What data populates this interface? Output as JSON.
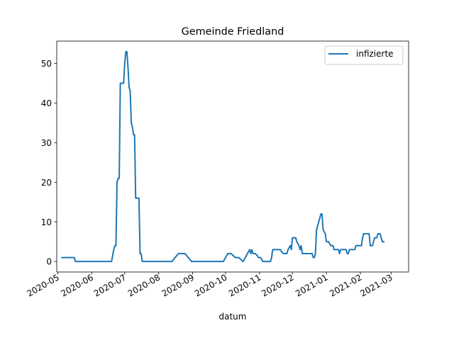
{
  "chart_data": {
    "type": "line",
    "title": "Gemeinde Friedland",
    "xlabel": "datum",
    "ylabel": "",
    "xlim": [
      "2020-04-30",
      "2021-03-17"
    ],
    "ylim": [
      -2.65,
      55.65
    ],
    "x_ticks": [
      "2020-05",
      "2020-06",
      "2020-07",
      "2020-08",
      "2020-09",
      "2020-10",
      "2020-11",
      "2020-12",
      "2021-01",
      "2021-02",
      "2021-03"
    ],
    "y_ticks": [
      0,
      10,
      20,
      30,
      40,
      50
    ],
    "legend": {
      "position": "top-right"
    },
    "grid": false,
    "colors": {
      "series": "#1f77b4"
    },
    "series": [
      {
        "name": "infizierte",
        "points": [
          [
            "2020-05-04",
            1
          ],
          [
            "2020-05-07",
            1
          ],
          [
            "2020-05-10",
            1
          ],
          [
            "2020-05-13",
            1
          ],
          [
            "2020-05-16",
            1
          ],
          [
            "2020-05-17",
            0
          ],
          [
            "2020-05-20",
            0
          ],
          [
            "2020-05-25",
            0
          ],
          [
            "2020-05-31",
            0
          ],
          [
            "2020-06-05",
            0
          ],
          [
            "2020-06-10",
            0
          ],
          [
            "2020-06-15",
            0
          ],
          [
            "2020-06-19",
            0
          ],
          [
            "2020-06-21",
            3
          ],
          [
            "2020-06-22",
            4
          ],
          [
            "2020-06-23",
            4
          ],
          [
            "2020-06-24",
            20
          ],
          [
            "2020-06-25",
            21
          ],
          [
            "2020-06-26",
            21
          ],
          [
            "2020-06-27",
            45
          ],
          [
            "2020-06-28",
            45
          ],
          [
            "2020-06-29",
            45
          ],
          [
            "2020-06-30",
            45
          ],
          [
            "2020-07-01",
            50
          ],
          [
            "2020-07-02",
            53
          ],
          [
            "2020-07-03",
            53
          ],
          [
            "2020-07-04",
            49
          ],
          [
            "2020-07-05",
            44
          ],
          [
            "2020-07-06",
            43
          ],
          [
            "2020-07-07",
            35
          ],
          [
            "2020-07-08",
            34
          ],
          [
            "2020-07-09",
            32
          ],
          [
            "2020-07-10",
            32
          ],
          [
            "2020-07-11",
            16
          ],
          [
            "2020-07-12",
            16
          ],
          [
            "2020-07-13",
            16
          ],
          [
            "2020-07-14",
            16
          ],
          [
            "2020-07-15",
            2
          ],
          [
            "2020-07-16",
            2
          ],
          [
            "2020-07-17",
            0
          ],
          [
            "2020-07-22",
            0
          ],
          [
            "2020-07-28",
            0
          ],
          [
            "2020-08-03",
            0
          ],
          [
            "2020-08-09",
            0
          ],
          [
            "2020-08-13",
            0
          ],
          [
            "2020-08-16",
            1
          ],
          [
            "2020-08-19",
            2
          ],
          [
            "2020-08-22",
            2
          ],
          [
            "2020-08-25",
            2
          ],
          [
            "2020-08-28",
            1
          ],
          [
            "2020-08-31",
            0
          ],
          [
            "2020-09-05",
            0
          ],
          [
            "2020-09-10",
            0
          ],
          [
            "2020-09-15",
            0
          ],
          [
            "2020-09-20",
            0
          ],
          [
            "2020-09-25",
            0
          ],
          [
            "2020-09-29",
            0
          ],
          [
            "2020-10-01",
            1
          ],
          [
            "2020-10-03",
            2
          ],
          [
            "2020-10-06",
            2
          ],
          [
            "2020-10-08",
            1.5
          ],
          [
            "2020-10-10",
            1
          ],
          [
            "2020-10-13",
            1
          ],
          [
            "2020-10-15",
            0.5
          ],
          [
            "2020-10-17",
            0
          ],
          [
            "2020-10-19",
            1
          ],
          [
            "2020-10-21",
            2
          ],
          [
            "2020-10-22",
            2.5
          ],
          [
            "2020-10-23",
            3
          ],
          [
            "2020-10-24",
            2
          ],
          [
            "2020-10-25",
            3
          ],
          [
            "2020-10-26",
            2
          ],
          [
            "2020-10-28",
            2
          ],
          [
            "2020-10-30",
            1.5
          ],
          [
            "2020-10-31",
            1
          ],
          [
            "2020-11-02",
            1
          ],
          [
            "2020-11-04",
            0
          ],
          [
            "2020-11-08",
            0
          ],
          [
            "2020-11-11",
            0
          ],
          [
            "2020-11-12",
            1
          ],
          [
            "2020-11-13",
            3
          ],
          [
            "2020-11-15",
            3
          ],
          [
            "2020-11-18",
            3
          ],
          [
            "2020-11-20",
            3
          ],
          [
            "2020-11-21",
            2.5
          ],
          [
            "2020-11-23",
            2
          ],
          [
            "2020-11-26",
            2
          ],
          [
            "2020-11-27",
            3
          ],
          [
            "2020-11-29",
            4
          ],
          [
            "2020-11-30",
            3
          ],
          [
            "2020-12-01",
            6
          ],
          [
            "2020-12-03",
            6
          ],
          [
            "2020-12-04",
            6
          ],
          [
            "2020-12-05",
            5
          ],
          [
            "2020-12-07",
            4
          ],
          [
            "2020-12-08",
            3
          ],
          [
            "2020-12-09",
            4
          ],
          [
            "2020-12-10",
            2
          ],
          [
            "2020-12-13",
            2
          ],
          [
            "2020-12-16",
            2
          ],
          [
            "2020-12-19",
            2
          ],
          [
            "2020-12-20",
            1
          ],
          [
            "2020-12-21",
            1
          ],
          [
            "2020-12-22",
            2
          ],
          [
            "2020-12-23",
            8
          ],
          [
            "2020-12-25",
            10
          ],
          [
            "2020-12-27",
            12
          ],
          [
            "2020-12-28",
            12
          ],
          [
            "2020-12-29",
            8
          ],
          [
            "2020-12-31",
            7
          ],
          [
            "2021-01-01",
            5
          ],
          [
            "2021-01-03",
            5
          ],
          [
            "2021-01-05",
            4
          ],
          [
            "2021-01-07",
            4
          ],
          [
            "2021-01-08",
            3
          ],
          [
            "2021-01-10",
            3
          ],
          [
            "2021-01-12",
            3
          ],
          [
            "2021-01-13",
            2
          ],
          [
            "2021-01-14",
            3
          ],
          [
            "2021-01-17",
            3
          ],
          [
            "2021-01-19",
            3
          ],
          [
            "2021-01-20",
            2
          ],
          [
            "2021-01-21",
            2
          ],
          [
            "2021-01-22",
            3
          ],
          [
            "2021-01-25",
            3
          ],
          [
            "2021-01-27",
            3
          ],
          [
            "2021-01-28",
            4
          ],
          [
            "2021-01-31",
            4
          ],
          [
            "2021-02-02",
            4
          ],
          [
            "2021-02-03",
            6
          ],
          [
            "2021-02-04",
            7
          ],
          [
            "2021-02-06",
            7
          ],
          [
            "2021-02-08",
            7
          ],
          [
            "2021-02-09",
            7
          ],
          [
            "2021-02-10",
            4
          ],
          [
            "2021-02-12",
            4
          ],
          [
            "2021-02-13",
            5
          ],
          [
            "2021-02-14",
            6
          ],
          [
            "2021-02-16",
            6
          ],
          [
            "2021-02-17",
            7
          ],
          [
            "2021-02-19",
            7
          ],
          [
            "2021-02-20",
            6
          ],
          [
            "2021-02-21",
            5
          ],
          [
            "2021-02-23",
            5
          ]
        ]
      }
    ]
  }
}
